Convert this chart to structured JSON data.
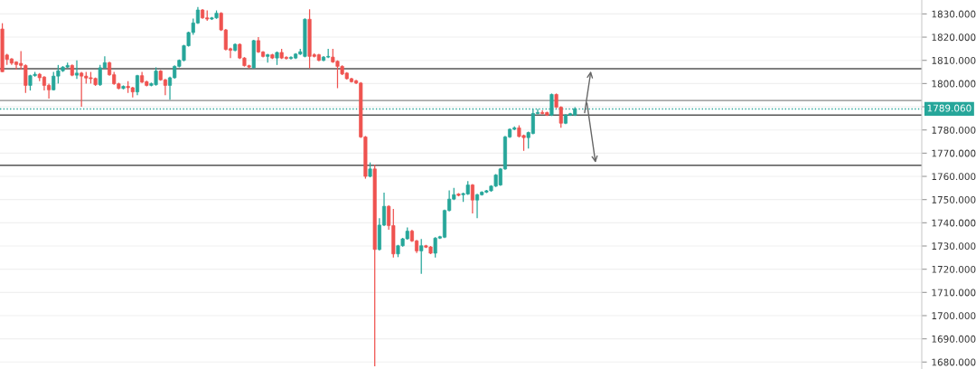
{
  "chart_data": {
    "type": "candlestick",
    "categories": [
      null,
      null,
      null,
      null,
      null,
      null,
      null,
      null,
      null,
      null,
      null,
      null,
      null,
      null,
      null,
      null,
      null,
      null,
      null,
      null,
      null,
      null,
      null,
      null,
      null,
      null,
      null,
      null,
      null,
      null,
      null,
      null,
      null,
      null,
      null,
      null,
      null,
      null,
      null,
      null,
      null,
      null,
      null,
      null,
      null,
      null,
      null,
      null,
      null,
      null,
      null,
      null,
      null,
      null,
      null,
      null,
      null,
      null,
      null,
      null,
      null,
      null,
      null,
      null,
      null,
      null,
      null,
      null,
      null,
      null,
      null,
      null,
      null,
      null,
      null,
      null,
      null,
      null,
      null,
      null,
      null,
      null,
      null,
      null,
      null,
      null,
      null,
      null,
      null,
      null,
      null,
      null,
      null,
      null,
      null,
      null,
      null,
      null,
      null,
      null,
      null,
      null,
      null,
      null,
      null,
      null,
      null,
      null,
      null,
      null,
      null,
      null,
      null,
      null,
      null,
      null,
      null,
      null,
      null,
      null,
      null,
      null,
      null,
      null,
      null,
      null,
      null,
      null,
      null,
      null,
      null,
      null,
      null,
      null,
      null,
      null,
      null,
      null,
      null,
      null,
      null,
      null,
      null,
      null,
      null,
      null,
      null,
      null,
      null,
      null,
      null,
      null,
      null,
      null,
      null,
      null,
      null,
      null,
      null,
      null,
      null,
      null,
      null,
      null,
      null,
      null,
      null,
      null,
      null,
      null,
      null,
      null,
      null,
      null,
      null,
      null,
      null,
      null,
      null,
      null,
      null,
      null,
      null,
      null,
      null,
      null,
      null,
      null,
      null,
      null,
      null,
      null,
      null,
      null,
      null,
      null,
      null,
      null
    ],
    "ohlc": [
      [
        1823.5,
        1826,
        1805,
        1805.1
      ],
      [
        1812.3,
        1812.8,
        1808,
        1810.4
      ],
      [
        1810.6,
        1811,
        1808,
        1808.8
      ],
      [
        1809.3,
        1809.6,
        1806,
        1808.2
      ],
      [
        1808.7,
        1814,
        1806,
        1807.8
      ],
      [
        1807.8,
        1808.2,
        1796,
        1799.2
      ],
      [
        1799.2,
        1803.8,
        1797,
        1803.4
      ],
      [
        1803.4,
        1805,
        1803,
        1804
      ],
      [
        1804,
        1804.5,
        1801,
        1802.5
      ],
      [
        1802.8,
        1803.2,
        1797,
        1799.2
      ],
      [
        1799.2,
        1800,
        1793.5,
        1797.3
      ],
      [
        1797.3,
        1805,
        1797,
        1803.2
      ],
      [
        1803.2,
        1808,
        1800,
        1805.5
      ],
      [
        1805.5,
        1807.5,
        1805,
        1807.1
      ],
      [
        1807.1,
        1809,
        1806.8,
        1807.8
      ],
      [
        1807.8,
        1808.2,
        1803.2,
        1803.6
      ],
      [
        1803.6,
        1810,
        1802,
        1804.5
      ],
      [
        1804.5,
        1805,
        1790,
        1803.2
      ],
      [
        1803.2,
        1805,
        1800,
        1802.4
      ],
      [
        1802.5,
        1805,
        1800,
        1802.1
      ],
      [
        1802.2,
        1802.6,
        1799,
        1799.5
      ],
      [
        1799.5,
        1808,
        1799,
        1806.8
      ],
      [
        1806.8,
        1811.7,
        1806.5,
        1809
      ],
      [
        1809,
        1809.4,
        1803.4,
        1803.8
      ],
      [
        1803.8,
        1805,
        1799.5,
        1799.9
      ],
      [
        1799.9,
        1800.3,
        1797.5,
        1797.9
      ],
      [
        1797.9,
        1799.2,
        1797.5,
        1798.8
      ],
      [
        1798.8,
        1801,
        1796,
        1798.2
      ],
      [
        1798.2,
        1798.6,
        1794,
        1796.4
      ],
      [
        1796.4,
        1803.8,
        1795,
        1803.4
      ],
      [
        1803.4,
        1805,
        1800.2,
        1800.6
      ],
      [
        1800.8,
        1801.2,
        1798.8,
        1799.2
      ],
      [
        1799.2,
        1800.4,
        1798.8,
        1800
      ],
      [
        1799.5,
        1807,
        1799.1,
        1805.4
      ],
      [
        1805.4,
        1805.8,
        1801.2,
        1801.6
      ],
      [
        1801.6,
        1802,
        1795,
        1799.2
      ],
      [
        1799.2,
        1803,
        1793,
        1802.5
      ],
      [
        1802.5,
        1807.8,
        1802.1,
        1807.4
      ],
      [
        1807.4,
        1810.4,
        1807,
        1810
      ],
      [
        1810,
        1816.7,
        1809.6,
        1816.3
      ],
      [
        1816.3,
        1822.4,
        1815.9,
        1822
      ],
      [
        1822,
        1828,
        1821,
        1826.1
      ],
      [
        1826.1,
        1833,
        1825.7,
        1831.7
      ],
      [
        1831.7,
        1832.1,
        1827.9,
        1828.3
      ],
      [
        1828.3,
        1831.5,
        1827,
        1827.8
      ],
      [
        1827.8,
        1828.7,
        1827.4,
        1828.3
      ],
      [
        1828.3,
        1831.5,
        1827.9,
        1830.3
      ],
      [
        1830.3,
        1830.7,
        1822.7,
        1823.1
      ],
      [
        1823.1,
        1823.5,
        1814.3,
        1814.7
      ],
      [
        1815,
        1815.4,
        1811,
        1814.3
      ],
      [
        1814.3,
        1817.3,
        1813.9,
        1816.9
      ],
      [
        1816.9,
        1817.3,
        1810.6,
        1811
      ],
      [
        1811,
        1811.4,
        1807.3,
        1807.7
      ],
      [
        1807.7,
        1808.1,
        1806.5,
        1807.1
      ],
      [
        1806.8,
        1818.9,
        1806.4,
        1818.5
      ],
      [
        1818.5,
        1820,
        1813.2,
        1813.6
      ],
      [
        1813.6,
        1814,
        1811.3,
        1811.7
      ],
      [
        1811.7,
        1812.8,
        1809,
        1812.4
      ],
      [
        1812.4,
        1812.8,
        1810.6,
        1811
      ],
      [
        1811,
        1813.8,
        1808,
        1813.4
      ],
      [
        1813.4,
        1815,
        1810.6,
        1811
      ],
      [
        1811.3,
        1811.7,
        1810.4,
        1810.8
      ],
      [
        1810.8,
        1811.7,
        1810.4,
        1811.3
      ],
      [
        1811,
        1813.1,
        1810.6,
        1812.7
      ],
      [
        1812.7,
        1815,
        1812.3,
        1813.7
      ],
      [
        1811.7,
        1828.1,
        1811.3,
        1827.7
      ],
      [
        1827.7,
        1832,
        1806.5,
        1811.7
      ],
      [
        1812.4,
        1813,
        1811.3,
        1811.7
      ],
      [
        1812.4,
        1812.8,
        1809.6,
        1810
      ],
      [
        1810,
        1811.8,
        1809.6,
        1811.4
      ],
      [
        1811.4,
        1815,
        1811,
        1811.7
      ],
      [
        1811.4,
        1815,
        1808.9,
        1809.3
      ],
      [
        1809.6,
        1810,
        1798,
        1807.4
      ],
      [
        1807.4,
        1807.8,
        1803.7,
        1804.1
      ],
      [
        1804.5,
        1804.9,
        1801.7,
        1802.1
      ],
      [
        1802.1,
        1802.5,
        1800.4,
        1800.8
      ],
      [
        1801.2,
        1801.6,
        1799.8,
        1800.2
      ],
      [
        1800.2,
        1800.6,
        1776.6,
        1777
      ],
      [
        1777,
        1777.4,
        1759,
        1760
      ],
      [
        1760,
        1766,
        1759.6,
        1763.2
      ],
      [
        1763.2,
        1765,
        1678.2,
        1728.5
      ],
      [
        1728.5,
        1742,
        1728.1,
        1739
      ],
      [
        1739,
        1753,
        1738.6,
        1747.1
      ],
      [
        1747.1,
        1747.5,
        1737,
        1738.8
      ],
      [
        1738.8,
        1746,
        1725,
        1726.6
      ],
      [
        1726.6,
        1730.5,
        1725.2,
        1730.1
      ],
      [
        1730.1,
        1733.5,
        1729.7,
        1733.1
      ],
      [
        1733.1,
        1738,
        1732.7,
        1736.4
      ],
      [
        1736.4,
        1737,
        1731.8,
        1732.2
      ],
      [
        1732.2,
        1732.6,
        1727,
        1727.9
      ],
      [
        1727.9,
        1733,
        1718,
        1730.1
      ],
      [
        1730.1,
        1730.5,
        1729.1,
        1729.5
      ],
      [
        1729.6,
        1730,
        1726.5,
        1726.9
      ],
      [
        1726.9,
        1733.8,
        1725,
        1733.4
      ],
      [
        1733.4,
        1734.4,
        1733,
        1734
      ],
      [
        1733.8,
        1745.7,
        1733.4,
        1745.3
      ],
      [
        1745.3,
        1754,
        1744.9,
        1750.2
      ],
      [
        1750.2,
        1755,
        1749.8,
        1752.1
      ],
      [
        1752.4,
        1752.8,
        1751.4,
        1751.8
      ],
      [
        1752.1,
        1753,
        1749,
        1752.6
      ],
      [
        1752.4,
        1758,
        1752,
        1756.3
      ],
      [
        1756.3,
        1756.7,
        1744,
        1749.8
      ],
      [
        1749.8,
        1752.5,
        1742,
        1752.1
      ],
      [
        1752.1,
        1753.6,
        1751.7,
        1753.2
      ],
      [
        1753.2,
        1754.2,
        1752.8,
        1753.8
      ],
      [
        1753.8,
        1756.2,
        1753.4,
        1755.8
      ],
      [
        1755.8,
        1761,
        1755.4,
        1760.6
      ],
      [
        1756.3,
        1763.6,
        1755.9,
        1763.2
      ],
      [
        1763.2,
        1777.4,
        1762.8,
        1777
      ],
      [
        1777,
        1780.7,
        1776.6,
        1780.3
      ],
      [
        1780.3,
        1781.5,
        1779.9,
        1780.9
      ],
      [
        1780.9,
        1782,
        1776.8,
        1777.2
      ],
      [
        1777.6,
        1778,
        1771,
        1776.7
      ],
      [
        1776.7,
        1779.3,
        1772,
        1778.9
      ],
      [
        1778.5,
        1789,
        1778.1,
        1787.1
      ],
      [
        1787.1,
        1789,
        1786.7,
        1787.5
      ],
      [
        1787.5,
        1788.5,
        1786.7,
        1787.1
      ],
      [
        1787.5,
        1787.9,
        1786,
        1786.4
      ],
      [
        1786.4,
        1795.7,
        1786,
        1795.3
      ],
      [
        1795.3,
        1795.7,
        1789.4,
        1789.8
      ],
      [
        1789.8,
        1790.2,
        1781,
        1782.9
      ],
      [
        1782.9,
        1786.8,
        1782.5,
        1786.4
      ],
      [
        1786.4,
        1787.4,
        1786,
        1787
      ],
      [
        1786.4,
        1789.8,
        1786,
        1789.1
      ],
      null,
      null,
      null,
      null,
      null,
      null,
      null,
      null,
      null,
      null,
      null,
      null,
      null,
      null,
      null,
      null,
      null,
      null,
      null,
      null,
      null,
      null,
      null,
      null,
      null,
      null,
      null,
      null,
      null,
      null,
      null,
      null,
      null,
      null,
      null,
      null,
      null,
      null,
      null,
      null,
      null,
      null,
      null,
      null,
      null,
      null,
      null,
      null,
      null,
      null,
      null,
      null,
      null,
      null,
      null,
      null,
      null,
      null,
      null,
      null,
      null,
      null,
      null,
      null,
      null,
      null,
      null,
      null,
      null,
      null,
      null,
      null,
      null,
      null
    ],
    "colors": [
      "#ef5350",
      "#ef5350",
      "#ef5350",
      "#ef5350",
      "#ef5350",
      "#ef5350",
      "#26a69a",
      "#26a69a",
      "#ef5350",
      "#ef5350",
      "#ef5350",
      "#26a69a",
      "#26a69a",
      "#26a69a",
      "#26a69a",
      "#ef5350",
      "#26a69a",
      "#ef5350",
      "#ef5350",
      "#ef5350",
      "#ef5350",
      "#26a69a",
      "#26a69a",
      "#ef5350",
      "#ef5350",
      "#ef5350",
      "#26a69a",
      "#ef5350",
      "#ef5350",
      "#26a69a",
      "#ef5350",
      "#ef5350",
      "#26a69a",
      "#26a69a",
      "#ef5350",
      "#ef5350",
      "#26a69a",
      "#26a69a",
      "#26a69a",
      "#26a69a",
      "#26a69a",
      "#26a69a",
      "#26a69a",
      "#ef5350",
      "#ef5350",
      "#26a69a",
      "#26a69a",
      "#ef5350",
      "#ef5350",
      "#ef5350",
      "#26a69a",
      "#ef5350",
      "#ef5350",
      "#ef5350",
      "#26a69a",
      "#ef5350",
      "#ef5350",
      "#26a69a",
      "#ef5350",
      "#26a69a",
      "#ef5350",
      "#ef5350",
      "#26a69a",
      "#26a69a",
      "#26a69a",
      "#26a69a",
      "#ef5350",
      "#ef5350",
      "#ef5350",
      "#26a69a",
      "#26a69a",
      "#ef5350",
      "#ef5350",
      "#ef5350",
      "#ef5350",
      "#ef5350",
      "#ef5350",
      "#ef5350",
      "#ef5350",
      "#26a69a",
      "#ef5350",
      "#26a69a",
      "#26a69a",
      "#ef5350",
      "#ef5350",
      "#26a69a",
      "#26a69a",
      "#26a69a",
      "#ef5350",
      "#ef5350",
      "#26a69a",
      "#ef5350",
      "#ef5350",
      "#26a69a",
      "#26a69a",
      "#26a69a",
      "#26a69a",
      "#26a69a",
      "#ef5350",
      "#26a69a",
      "#26a69a",
      "#ef5350",
      "#26a69a",
      "#26a69a",
      "#26a69a",
      "#26a69a",
      "#26a69a",
      "#26a69a",
      "#26a69a",
      "#26a69a",
      "#26a69a",
      "#ef5350",
      "#ef5350",
      "#26a69a",
      "#26a69a",
      "#26a69a",
      "#ef5350",
      "#ef5350",
      "#26a69a",
      "#ef5350",
      "#ef5350",
      "#26a69a",
      "#26a69a",
      "#26a69a",
      null,
      null,
      null,
      null,
      null,
      null,
      null,
      null,
      null,
      null,
      null,
      null,
      null,
      null,
      null,
      null,
      null,
      null,
      null,
      null,
      null,
      null,
      null,
      null,
      null,
      null,
      null,
      null,
      null,
      null,
      null,
      null,
      null,
      null,
      null,
      null,
      null,
      null,
      null,
      null,
      null,
      null,
      null,
      null,
      null,
      null,
      null,
      null,
      null,
      null,
      null,
      null,
      null,
      null,
      null,
      null,
      null,
      null,
      null,
      null,
      null,
      null,
      null,
      null,
      null,
      null,
      null,
      null,
      null,
      null,
      null,
      null,
      null,
      null
    ],
    "ylim": [
      1677,
      1836
    ],
    "yticks": [
      {
        "value": 1680,
        "label": "1680.000"
      },
      {
        "value": 1690,
        "label": "1690.000"
      },
      {
        "value": 1700,
        "label": "1700.000"
      },
      {
        "value": 1710,
        "label": "1710.000"
      },
      {
        "value": 1720,
        "label": "1720.000"
      },
      {
        "value": 1730,
        "label": "1730.000"
      },
      {
        "value": 1740,
        "label": "1740.000"
      },
      {
        "value": 1750,
        "label": "1750.000"
      },
      {
        "value": 1760,
        "label": "1760.000"
      },
      {
        "value": 1770,
        "label": "1770.000"
      },
      {
        "value": 1780,
        "label": "1780.000"
      },
      {
        "value": 1790,
        "label": null
      },
      {
        "value": 1800,
        "label": "1800.000"
      },
      {
        "value": 1810,
        "label": "1810.000"
      },
      {
        "value": 1820,
        "label": "1820.000"
      },
      {
        "value": 1830,
        "label": "1830.000"
      }
    ],
    "ref_lines": [
      {
        "axis": "y",
        "value": 1806.4,
        "color": "#555555"
      },
      {
        "axis": "y",
        "value": 1792.7,
        "color": "#888888"
      },
      {
        "axis": "y",
        "value": 1786.4,
        "color": "#555555"
      },
      {
        "axis": "y",
        "value": 1764.8,
        "color": "#555555"
      },
      {
        "axis": "y",
        "value": 1789.06,
        "label": "1789.060",
        "color": "#26a69a",
        "line_style": "dotted"
      }
    ],
    "grid": "y",
    "tick_labels": "y"
  }
}
